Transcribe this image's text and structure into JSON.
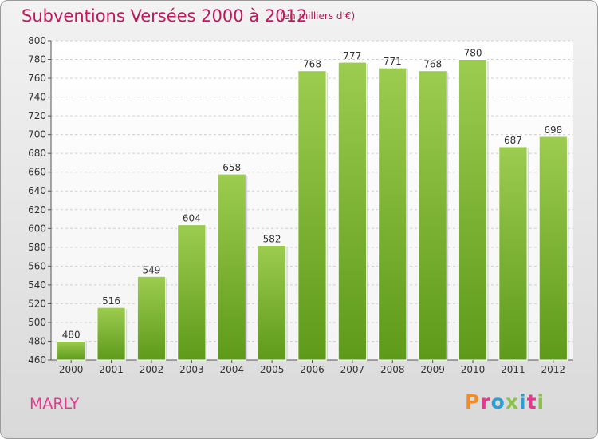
{
  "header": {
    "title": "Subventions Versées 2000 à 2012",
    "subtitle": "(en milliers d'€)"
  },
  "footer": {
    "town": "MARLY",
    "logo": "Proxiti",
    "logo_colors": [
      "#f28c28",
      "#e23a8e",
      "#2a9fd6",
      "#8bc34a",
      "#2a9fd6",
      "#e23a8e",
      "#8bc34a"
    ]
  },
  "chart_data": {
    "type": "bar",
    "title": "Subventions Versées 2000 à 2012",
    "subtitle": "(en milliers d'€)",
    "categories": [
      "2000",
      "2001",
      "2002",
      "2003",
      "2004",
      "2005",
      "2006",
      "2007",
      "2008",
      "2009",
      "2010",
      "2011",
      "2012"
    ],
    "values": [
      480,
      516,
      549,
      604,
      658,
      582,
      768,
      777,
      771,
      768,
      780,
      687,
      698
    ],
    "ylim": [
      460,
      800
    ],
    "yticks": [
      460,
      480,
      500,
      520,
      540,
      560,
      580,
      600,
      620,
      640,
      660,
      680,
      700,
      720,
      740,
      760,
      780,
      800
    ],
    "grid": true,
    "bar_color": "#7cb82f"
  }
}
